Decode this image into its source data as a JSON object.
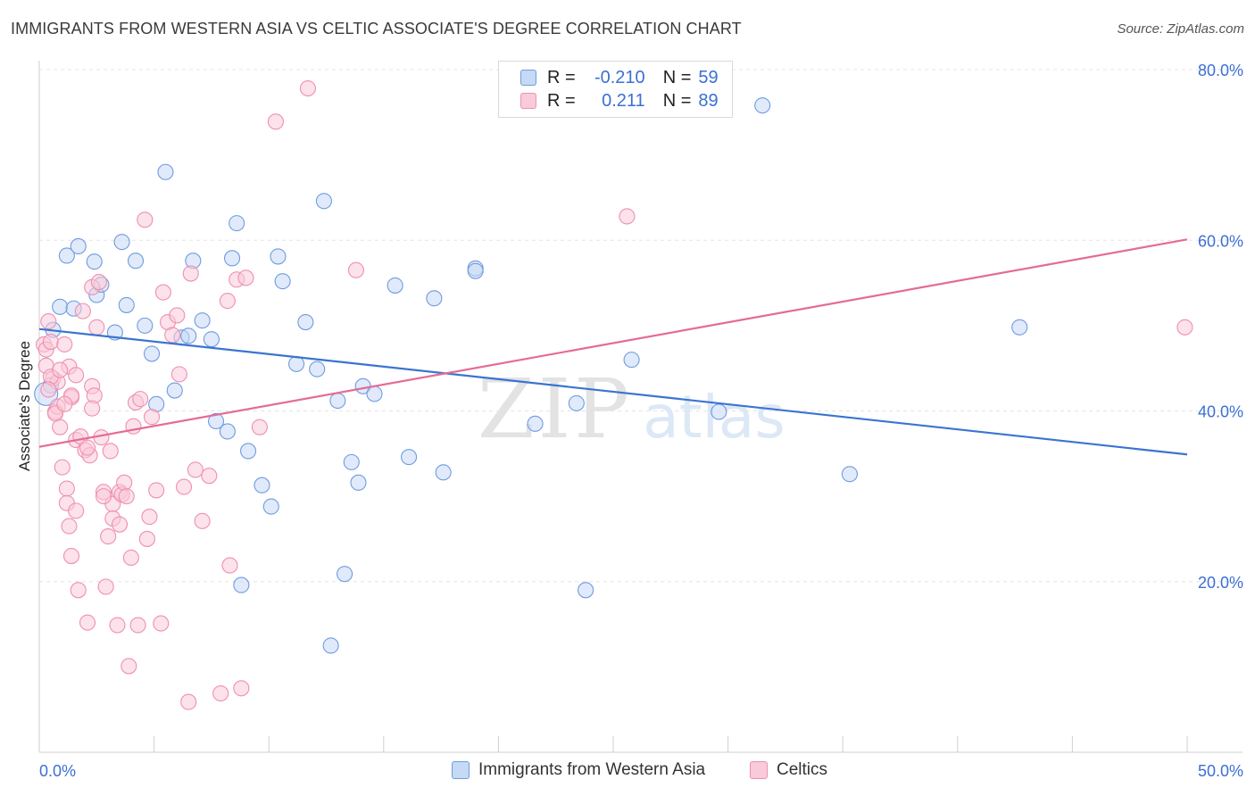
{
  "chart_data": {
    "type": "scatter",
    "title": "IMMIGRANTS FROM WESTERN ASIA VS CELTIC ASSOCIATE'S DEGREE CORRELATION CHART",
    "source": "Source: ZipAtlas.com",
    "ylabel": "Associate's Degree",
    "xlabel": "",
    "xlim": [
      0,
      50
    ],
    "ylim": [
      0,
      80
    ],
    "x_tick_labels": [
      "0.0%",
      "50.0%"
    ],
    "y_tick_labels": [
      "20.0%",
      "40.0%",
      "60.0%",
      "80.0%"
    ],
    "y_ticks": [
      20,
      40,
      60,
      80
    ],
    "watermark": {
      "zip": "ZIP",
      "atlas": "atlas"
    },
    "legend": {
      "r_label": "R =",
      "n_label": "N =",
      "rows": [
        {
          "r": "-0.210",
          "n": "59"
        },
        {
          "r": "0.211",
          "n": "89"
        }
      ]
    },
    "series": [
      {
        "name": "Immigrants from Western Asia",
        "color": "#6f9be0",
        "fill": "#c6d9f5",
        "r": -0.21,
        "n": 59,
        "trend": [
          [
            0,
            49.6
          ],
          [
            50,
            34.9
          ]
        ],
        "points": [
          [
            0.5,
            43
          ],
          [
            0.6,
            49.5
          ],
          [
            0.9,
            52.2
          ],
          [
            1.2,
            58.2
          ],
          [
            1.5,
            52
          ],
          [
            1.7,
            59.3
          ],
          [
            2.4,
            57.5
          ],
          [
            2.5,
            53.6
          ],
          [
            2.7,
            54.8
          ],
          [
            3.3,
            49.2
          ],
          [
            3.6,
            59.8
          ],
          [
            3.8,
            52.4
          ],
          [
            4.2,
            57.6
          ],
          [
            4.6,
            50
          ],
          [
            4.9,
            46.7
          ],
          [
            5.1,
            40.8
          ],
          [
            5.5,
            68
          ],
          [
            5.9,
            42.4
          ],
          [
            6.2,
            48.6
          ],
          [
            6.5,
            48.8
          ],
          [
            6.7,
            57.6
          ],
          [
            7.1,
            50.6
          ],
          [
            7.5,
            48.4
          ],
          [
            7.7,
            38.8
          ],
          [
            8.2,
            37.6
          ],
          [
            8.4,
            57.9
          ],
          [
            8.6,
            62
          ],
          [
            8.8,
            19.6
          ],
          [
            9.1,
            35.3
          ],
          [
            9.7,
            31.3
          ],
          [
            10.1,
            28.8
          ],
          [
            10.4,
            58.1
          ],
          [
            10.6,
            55.2
          ],
          [
            11.2,
            45.5
          ],
          [
            11.6,
            50.4
          ],
          [
            12.1,
            44.9
          ],
          [
            12.4,
            64.6
          ],
          [
            12.7,
            12.5
          ],
          [
            13,
            41.2
          ],
          [
            13.3,
            20.9
          ],
          [
            13.6,
            34
          ],
          [
            13.9,
            31.6
          ],
          [
            14.1,
            42.9
          ],
          [
            14.6,
            42
          ],
          [
            15.5,
            54.7
          ],
          [
            16.1,
            34.6
          ],
          [
            17.2,
            53.2
          ],
          [
            17.6,
            32.8
          ],
          [
            19,
            56.7
          ],
          [
            19,
            56.4
          ],
          [
            21.6,
            38.5
          ],
          [
            23.4,
            40.9
          ],
          [
            23.8,
            19
          ],
          [
            25.8,
            46
          ],
          [
            29.6,
            39.9
          ],
          [
            31.5,
            75.8
          ],
          [
            35.3,
            32.6
          ],
          [
            42.7,
            49.8
          ],
          [
            0.3,
            42
          ]
        ]
      },
      {
        "name": "Celtics",
        "color": "#ef8fb0",
        "fill": "#f9cad9",
        "r": 0.211,
        "n": 89,
        "trend": [
          [
            0,
            35.8
          ],
          [
            50,
            60.1
          ]
        ],
        "points": [
          [
            0.2,
            47.8
          ],
          [
            0.3,
            45.3
          ],
          [
            0.3,
            47.2
          ],
          [
            0.4,
            50.5
          ],
          [
            0.5,
            48.1
          ],
          [
            0.6,
            43.8
          ],
          [
            0.7,
            39.9
          ],
          [
            0.8,
            43.4
          ],
          [
            0.8,
            40.5
          ],
          [
            0.9,
            38.1
          ],
          [
            1,
            33.4
          ],
          [
            1.1,
            47.8
          ],
          [
            1.2,
            30.9
          ],
          [
            1.2,
            29.2
          ],
          [
            1.3,
            45.2
          ],
          [
            1.3,
            26.5
          ],
          [
            1.4,
            23
          ],
          [
            1.4,
            41.6
          ],
          [
            1.6,
            36.6
          ],
          [
            1.6,
            28.3
          ],
          [
            1.7,
            19
          ],
          [
            1.8,
            37
          ],
          [
            1.9,
            51.7
          ],
          [
            2,
            35.4
          ],
          [
            2.1,
            15.2
          ],
          [
            2.2,
            34.8
          ],
          [
            2.3,
            54.5
          ],
          [
            2.3,
            42.9
          ],
          [
            2.4,
            41.8
          ],
          [
            2.5,
            49.8
          ],
          [
            2.6,
            55.1
          ],
          [
            2.7,
            36.9
          ],
          [
            2.8,
            30.5
          ],
          [
            2.9,
            19.4
          ],
          [
            3,
            25.3
          ],
          [
            3.1,
            35.3
          ],
          [
            3.2,
            29.1
          ],
          [
            3.2,
            27.4
          ],
          [
            3.4,
            14.9
          ],
          [
            3.5,
            30.5
          ],
          [
            3.6,
            30.2
          ],
          [
            3.7,
            31.6
          ],
          [
            3.8,
            30
          ],
          [
            3.9,
            10.1
          ],
          [
            4,
            22.8
          ],
          [
            4.1,
            38.2
          ],
          [
            4.2,
            41
          ],
          [
            4.3,
            14.9
          ],
          [
            4.4,
            41.4
          ],
          [
            4.6,
            62.4
          ],
          [
            4.7,
            25
          ],
          [
            4.8,
            27.6
          ],
          [
            4.9,
            39.3
          ],
          [
            5.1,
            30.7
          ],
          [
            5.3,
            15.1
          ],
          [
            5.4,
            53.9
          ],
          [
            5.6,
            50.4
          ],
          [
            5.8,
            48.9
          ],
          [
            6,
            51.2
          ],
          [
            6.1,
            44.3
          ],
          [
            6.3,
            31.1
          ],
          [
            6.5,
            5.9
          ],
          [
            6.6,
            56.1
          ],
          [
            6.8,
            33.1
          ],
          [
            7.1,
            27.1
          ],
          [
            7.4,
            32.4
          ],
          [
            7.9,
            6.9
          ],
          [
            8.2,
            52.9
          ],
          [
            8.3,
            21.9
          ],
          [
            8.6,
            55.4
          ],
          [
            8.8,
            7.5
          ],
          [
            9,
            55.6
          ],
          [
            9.6,
            38.1
          ],
          [
            10.3,
            73.9
          ],
          [
            11.7,
            77.8
          ],
          [
            13.8,
            56.5
          ],
          [
            25.6,
            62.8
          ],
          [
            49.9,
            49.8
          ],
          [
            0.5,
            44
          ],
          [
            0.7,
            39.7
          ],
          [
            1.4,
            41.8
          ],
          [
            1.6,
            44.2
          ],
          [
            2.3,
            40.3
          ],
          [
            1.1,
            40.8
          ],
          [
            2.1,
            35.7
          ],
          [
            3.5,
            26.7
          ],
          [
            0.4,
            42.5
          ],
          [
            0.9,
            44.8
          ],
          [
            2.8,
            30
          ]
        ]
      }
    ]
  },
  "bottom_legend": [
    "Immigrants from Western Asia",
    "Celtics"
  ]
}
